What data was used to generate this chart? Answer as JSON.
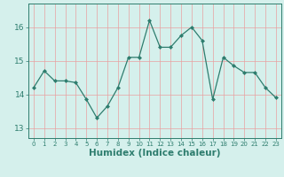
{
  "x": [
    0,
    1,
    2,
    3,
    4,
    5,
    6,
    7,
    8,
    9,
    10,
    11,
    12,
    13,
    14,
    15,
    16,
    17,
    18,
    19,
    20,
    21,
    22,
    23
  ],
  "y": [
    14.2,
    14.7,
    14.4,
    14.4,
    14.35,
    13.85,
    13.3,
    13.65,
    14.2,
    15.1,
    15.1,
    16.2,
    15.4,
    15.4,
    15.75,
    16.0,
    15.6,
    13.85,
    15.1,
    14.85,
    14.65,
    14.65,
    14.2,
    13.9
  ],
  "line_color": "#2e7d6e",
  "marker": "D",
  "marker_size": 2.0,
  "bg_color": "#d5f0ec",
  "grid_color": "#e8a0a0",
  "tick_color": "#2e7d6e",
  "xlabel": "Humidex (Indice chaleur)",
  "xlabel_fontsize": 7.5,
  "ytick_fontsize": 6.5,
  "xtick_fontsize": 5.0,
  "yticks": [
    13,
    14,
    15,
    16
  ],
  "ylim": [
    12.7,
    16.7
  ],
  "xlim": [
    -0.5,
    23.5
  ]
}
